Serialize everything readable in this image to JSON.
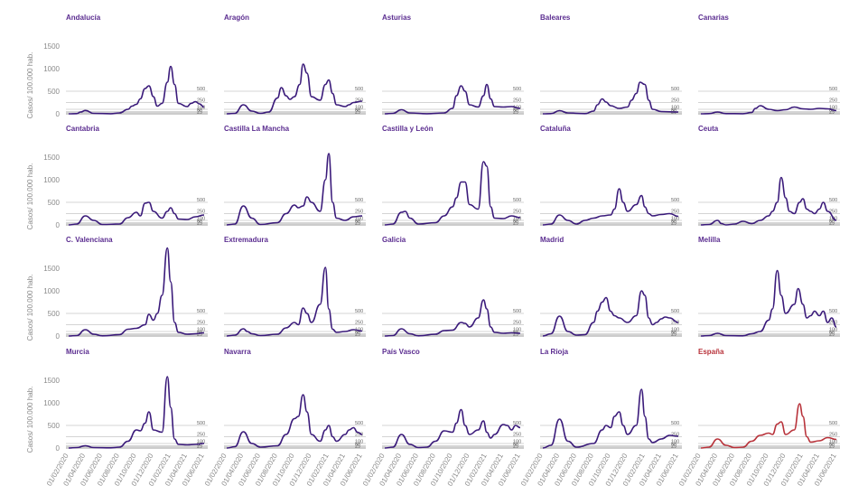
{
  "y_axis_label": "Casos/ 100.000 hab.",
  "y_ticks": [
    0,
    500,
    1000,
    1500
  ],
  "reference_lines": [
    {
      "value": 500,
      "label": "500"
    },
    {
      "value": 250,
      "label": "250"
    },
    {
      "value": 100,
      "label": "100"
    },
    {
      "value": 50,
      "label": "50"
    },
    {
      "value": 25,
      "label": "25"
    }
  ],
  "x_ticks": [
    "01/02/2020",
    "01/04/2020",
    "01/06/2020",
    "01/08/2020",
    "01/10/2020",
    "01/12/2020",
    "01/02/2021",
    "01/04/2021",
    "01/06/2021"
  ],
  "colors": {
    "region": "#3a1a7a",
    "spain": "#b8323a",
    "title_region": "#5b2d90",
    "title_spain": "#b8323a",
    "grid": "#aaaaaa"
  },
  "chart_data": [
    {
      "type": "line",
      "title": "Andalucía",
      "ylim": [
        0,
        1500
      ],
      "x": [
        "01/02/2020",
        "01/03/2020",
        "15/03/2020",
        "01/04/2020",
        "01/05/2020",
        "01/07/2020",
        "01/08/2020",
        "01/09/2020",
        "15/09/2020",
        "01/10/2020",
        "15/10/2020",
        "01/11/2020",
        "15/11/2020",
        "01/12/2020",
        "15/12/2020",
        "01/01/2021",
        "20/01/2021",
        "01/02/2021",
        "15/02/2021",
        "01/03/2021",
        "01/04/2021",
        "15/04/2021",
        "01/05/2021",
        "15/05/2021",
        "01/06/2021"
      ],
      "values": [
        0,
        5,
        40,
        75,
        10,
        2,
        20,
        100,
        170,
        210,
        330,
        560,
        620,
        380,
        170,
        230,
        700,
        1050,
        650,
        230,
        160,
        230,
        270,
        220,
        150
      ]
    },
    {
      "type": "line",
      "title": "Aragón",
      "ylim": [
        0,
        1500
      ],
      "x": [
        "01/02/2020",
        "01/03/2020",
        "01/04/2020",
        "01/05/2020",
        "01/06/2020",
        "01/07/2020",
        "01/08/2020",
        "15/08/2020",
        "01/09/2020",
        "15/09/2020",
        "01/10/2020",
        "20/10/2020",
        "01/11/2020",
        "15/11/2020",
        "01/12/2020",
        "01/01/2021",
        "20/01/2021",
        "01/02/2021",
        "15/02/2021",
        "01/03/2021",
        "01/04/2021",
        "15/04/2021",
        "01/05/2021",
        "01/06/2021"
      ],
      "values": [
        0,
        10,
        200,
        60,
        10,
        40,
        350,
        580,
        400,
        320,
        380,
        650,
        1100,
        900,
        380,
        300,
        650,
        750,
        450,
        200,
        160,
        200,
        250,
        280
      ]
    },
    {
      "type": "line",
      "title": "Asturias",
      "ylim": [
        0,
        1500
      ],
      "x": [
        "01/02/2020",
        "01/03/2020",
        "01/04/2020",
        "01/05/2020",
        "01/07/2020",
        "01/09/2020",
        "01/10/2020",
        "15/10/2020",
        "01/11/2020",
        "15/11/2020",
        "01/12/2020",
        "01/01/2021",
        "20/01/2021",
        "01/02/2021",
        "15/02/2021",
        "01/03/2021",
        "01/04/2021",
        "01/05/2021",
        "01/06/2021"
      ],
      "values": [
        0,
        10,
        90,
        20,
        2,
        20,
        120,
        400,
        620,
        500,
        200,
        150,
        400,
        650,
        330,
        160,
        150,
        160,
        120
      ]
    },
    {
      "type": "line",
      "title": "Baleares",
      "ylim": [
        0,
        1500
      ],
      "x": [
        "01/02/2020",
        "01/03/2020",
        "01/04/2020",
        "01/05/2020",
        "01/07/2020",
        "01/08/2020",
        "15/08/2020",
        "01/09/2020",
        "15/09/2020",
        "01/10/2020",
        "01/11/2020",
        "01/12/2020",
        "15/12/2020",
        "01/01/2021",
        "15/01/2021",
        "01/02/2021",
        "15/02/2021",
        "01/03/2021",
        "01/04/2021",
        "01/06/2021"
      ],
      "values": [
        0,
        5,
        70,
        20,
        5,
        60,
        200,
        330,
        260,
        180,
        120,
        150,
        300,
        450,
        700,
        650,
        300,
        100,
        50,
        40
      ]
    },
    {
      "type": "line",
      "title": "Canarias",
      "ylim": [
        0,
        1500
      ],
      "x": [
        "01/02/2020",
        "01/03/2020",
        "01/04/2020",
        "01/05/2020",
        "01/07/2020",
        "01/08/2020",
        "15/08/2020",
        "01/09/2020",
        "01/10/2020",
        "01/11/2020",
        "01/12/2020",
        "01/01/2021",
        "01/02/2021",
        "01/03/2021",
        "01/04/2021",
        "01/05/2021",
        "01/06/2021"
      ],
      "values": [
        0,
        5,
        40,
        5,
        2,
        30,
        120,
        180,
        100,
        70,
        90,
        150,
        110,
        100,
        120,
        110,
        70
      ]
    },
    {
      "type": "line",
      "title": "Cantabria",
      "ylim": [
        0,
        1500
      ],
      "x": [
        "01/02/2020",
        "01/03/2020",
        "01/04/2020",
        "01/05/2020",
        "01/06/2020",
        "01/08/2020",
        "01/09/2020",
        "01/10/2020",
        "15/10/2020",
        "01/11/2020",
        "15/11/2020",
        "01/12/2020",
        "01/01/2021",
        "20/01/2021",
        "01/02/2021",
        "15/02/2021",
        "01/03/2021",
        "01/04/2021",
        "01/05/2021",
        "01/06/2021"
      ],
      "values": [
        0,
        20,
        200,
        100,
        10,
        20,
        160,
        280,
        200,
        480,
        500,
        300,
        150,
        300,
        380,
        250,
        130,
        120,
        180,
        220
      ]
    },
    {
      "type": "line",
      "title": "Castilla La Mancha",
      "ylim": [
        0,
        1500
      ],
      "x": [
        "01/02/2020",
        "01/03/2020",
        "01/04/2020",
        "01/05/2020",
        "01/06/2020",
        "01/08/2020",
        "01/09/2020",
        "01/10/2020",
        "15/10/2020",
        "01/11/2020",
        "15/11/2020",
        "01/12/2020",
        "01/01/2021",
        "20/01/2021",
        "01/02/2021",
        "15/02/2021",
        "01/03/2021",
        "01/04/2021",
        "01/05/2021",
        "01/06/2021"
      ],
      "values": [
        0,
        20,
        420,
        150,
        10,
        50,
        250,
        440,
        380,
        420,
        620,
        500,
        300,
        1000,
        1580,
        500,
        150,
        100,
        180,
        200
      ]
    },
    {
      "type": "line",
      "title": "Castilla y León",
      "ylim": [
        0,
        1500
      ],
      "x": [
        "01/02/2020",
        "01/03/2020",
        "01/04/2020",
        "15/04/2020",
        "01/05/2020",
        "01/06/2020",
        "01/08/2020",
        "01/09/2020",
        "01/10/2020",
        "15/10/2020",
        "01/11/2020",
        "15/11/2020",
        "01/12/2020",
        "01/01/2021",
        "20/01/2021",
        "01/02/2021",
        "15/02/2021",
        "01/03/2021",
        "01/04/2021",
        "01/05/2021",
        "01/06/2021"
      ],
      "values": [
        0,
        20,
        280,
        300,
        150,
        20,
        50,
        200,
        400,
        600,
        950,
        950,
        450,
        350,
        1400,
        1300,
        400,
        150,
        140,
        200,
        160
      ]
    },
    {
      "type": "line",
      "title": "Cataluña",
      "ylim": [
        0,
        1500
      ],
      "x": [
        "01/02/2020",
        "01/03/2020",
        "01/04/2020",
        "01/05/2020",
        "01/06/2020",
        "01/07/2020",
        "01/08/2020",
        "01/09/2020",
        "01/10/2020",
        "15/10/2020",
        "01/11/2020",
        "15/11/2020",
        "01/12/2020",
        "01/01/2021",
        "20/01/2021",
        "01/02/2021",
        "15/02/2021",
        "01/03/2021",
        "01/04/2021",
        "01/05/2021",
        "01/06/2021"
      ],
      "values": [
        0,
        20,
        220,
        100,
        20,
        100,
        150,
        200,
        220,
        350,
        800,
        500,
        300,
        450,
        650,
        400,
        250,
        200,
        230,
        250,
        190
      ]
    },
    {
      "type": "line",
      "title": "Ceuta",
      "ylim": [
        0,
        1500
      ],
      "x": [
        "01/02/2020",
        "01/03/2020",
        "01/04/2020",
        "15/04/2020",
        "01/05/2020",
        "01/06/2020",
        "01/07/2020",
        "01/08/2020",
        "01/09/2020",
        "01/10/2020",
        "15/10/2020",
        "01/11/2020",
        "15/11/2020",
        "01/12/2020",
        "15/12/2020",
        "01/01/2021",
        "20/01/2021",
        "01/02/2021",
        "15/02/2021",
        "01/03/2021",
        "15/03/2021",
        "01/04/2021",
        "15/04/2021",
        "01/05/2021",
        "01/06/2021"
      ],
      "values": [
        0,
        10,
        100,
        30,
        0,
        20,
        80,
        30,
        100,
        200,
        300,
        500,
        1050,
        600,
        300,
        250,
        500,
        580,
        350,
        300,
        250,
        350,
        500,
        300,
        100
      ]
    },
    {
      "type": "line",
      "title": "C. Valenciana",
      "ylim": [
        0,
        1500
      ],
      "x": [
        "01/02/2020",
        "01/03/2020",
        "01/04/2020",
        "01/05/2020",
        "01/06/2020",
        "01/08/2020",
        "01/09/2020",
        "01/10/2020",
        "01/11/2020",
        "15/11/2020",
        "01/12/2020",
        "15/12/2020",
        "01/01/2021",
        "20/01/2021",
        "01/02/2021",
        "15/02/2021",
        "01/03/2021",
        "01/04/2021",
        "01/05/2021",
        "01/06/2021"
      ],
      "values": [
        0,
        10,
        140,
        40,
        5,
        30,
        150,
        170,
        250,
        480,
        350,
        500,
        900,
        1950,
        1200,
        300,
        80,
        40,
        50,
        70
      ]
    },
    {
      "type": "line",
      "title": "Extremadura",
      "ylim": [
        0,
        1500
      ],
      "x": [
        "01/02/2020",
        "01/03/2020",
        "01/04/2020",
        "15/04/2020",
        "01/05/2020",
        "01/06/2020",
        "01/08/2020",
        "01/09/2020",
        "01/10/2020",
        "15/10/2020",
        "01/11/2020",
        "15/11/2020",
        "01/12/2020",
        "01/01/2021",
        "20/01/2021",
        "01/02/2021",
        "15/02/2021",
        "01/03/2021",
        "01/04/2021",
        "01/05/2021",
        "01/06/2021"
      ],
      "values": [
        0,
        20,
        160,
        100,
        50,
        10,
        40,
        180,
        300,
        250,
        620,
        500,
        300,
        700,
        1520,
        600,
        150,
        80,
        100,
        140,
        110
      ]
    },
    {
      "type": "line",
      "title": "Galicia",
      "ylim": [
        0,
        1500
      ],
      "x": [
        "01/02/2020",
        "01/03/2020",
        "01/04/2020",
        "01/05/2020",
        "01/06/2020",
        "01/08/2020",
        "01/09/2020",
        "01/10/2020",
        "01/11/2020",
        "15/11/2020",
        "01/12/2020",
        "01/01/2021",
        "20/01/2021",
        "01/02/2021",
        "15/02/2021",
        "01/03/2021",
        "01/04/2021",
        "01/05/2021",
        "01/06/2021"
      ],
      "values": [
        0,
        10,
        160,
        50,
        5,
        40,
        120,
        130,
        300,
        280,
        200,
        400,
        800,
        600,
        200,
        80,
        60,
        70,
        60
      ]
    },
    {
      "type": "line",
      "title": "Madrid",
      "ylim": [
        0,
        1500
      ],
      "x": [
        "01/02/2020",
        "01/03/2020",
        "01/04/2020",
        "01/05/2020",
        "01/06/2020",
        "01/07/2020",
        "01/08/2020",
        "15/08/2020",
        "01/09/2020",
        "15/09/2020",
        "01/10/2020",
        "15/10/2020",
        "01/11/2020",
        "01/12/2020",
        "01/01/2021",
        "20/01/2021",
        "01/02/2021",
        "15/02/2021",
        "01/03/2021",
        "15/03/2021",
        "01/04/2021",
        "15/04/2021",
        "01/05/2021",
        "01/06/2021"
      ],
      "values": [
        0,
        50,
        440,
        100,
        20,
        30,
        300,
        550,
        750,
        850,
        550,
        450,
        400,
        300,
        450,
        1000,
        900,
        400,
        250,
        300,
        380,
        420,
        400,
        300
      ]
    },
    {
      "type": "line",
      "title": "Melilla",
      "ylim": [
        0,
        1500
      ],
      "x": [
        "01/02/2020",
        "01/03/2020",
        "01/04/2020",
        "01/05/2020",
        "01/07/2020",
        "01/08/2020",
        "01/09/2020",
        "01/10/2020",
        "15/10/2020",
        "01/11/2020",
        "15/11/2020",
        "01/12/2020",
        "01/01/2021",
        "15/01/2021",
        "01/02/2021",
        "15/02/2021",
        "01/03/2021",
        "15/03/2021",
        "01/04/2021",
        "15/04/2021",
        "01/05/2021",
        "15/05/2021",
        "01/06/2021"
      ],
      "values": [
        0,
        10,
        60,
        10,
        5,
        50,
        100,
        350,
        600,
        1450,
        900,
        500,
        700,
        1050,
        700,
        400,
        450,
        550,
        450,
        550,
        300,
        400,
        200
      ]
    },
    {
      "type": "line",
      "title": "Murcia",
      "ylim": [
        0,
        1500
      ],
      "x": [
        "01/02/2020",
        "01/03/2020",
        "01/04/2020",
        "01/05/2020",
        "01/07/2020",
        "01/08/2020",
        "01/09/2020",
        "01/10/2020",
        "15/10/2020",
        "01/11/2020",
        "15/11/2020",
        "01/12/2020",
        "01/01/2021",
        "20/01/2021",
        "01/02/2021",
        "15/02/2021",
        "01/03/2021",
        "01/04/2021",
        "01/05/2021",
        "01/06/2021"
      ],
      "values": [
        0,
        10,
        50,
        10,
        5,
        20,
        150,
        400,
        380,
        550,
        800,
        400,
        350,
        1580,
        900,
        200,
        80,
        70,
        80,
        100
      ]
    },
    {
      "type": "line",
      "title": "Navarra",
      "ylim": [
        0,
        1500
      ],
      "x": [
        "01/02/2020",
        "01/03/2020",
        "01/04/2020",
        "01/05/2020",
        "01/06/2020",
        "01/08/2020",
        "01/09/2020",
        "01/10/2020",
        "15/10/2020",
        "01/11/2020",
        "15/11/2020",
        "01/12/2020",
        "01/01/2021",
        "20/01/2021",
        "01/02/2021",
        "15/02/2021",
        "01/03/2021",
        "01/04/2021",
        "15/04/2021",
        "01/05/2021",
        "15/05/2021",
        "01/06/2021"
      ],
      "values": [
        0,
        30,
        360,
        100,
        20,
        50,
        300,
        650,
        700,
        1180,
        800,
        300,
        150,
        400,
        500,
        250,
        150,
        300,
        400,
        450,
        350,
        300
      ]
    },
    {
      "type": "line",
      "title": "País Vasco",
      "ylim": [
        0,
        1500
      ],
      "x": [
        "01/02/2020",
        "01/03/2020",
        "01/04/2020",
        "01/05/2020",
        "01/06/2020",
        "01/07/2020",
        "01/08/2020",
        "01/09/2020",
        "01/10/2020",
        "15/10/2020",
        "01/11/2020",
        "15/11/2020",
        "01/12/2020",
        "01/01/2021",
        "20/01/2021",
        "01/02/2021",
        "15/02/2021",
        "01/03/2021",
        "01/04/2021",
        "15/04/2021",
        "01/05/2021",
        "15/05/2021",
        "01/06/2021"
      ],
      "values": [
        0,
        20,
        300,
        80,
        10,
        20,
        150,
        380,
        350,
        550,
        850,
        500,
        300,
        400,
        600,
        350,
        220,
        300,
        520,
        500,
        400,
        500,
        450
      ]
    },
    {
      "type": "line",
      "title": "La Rioja",
      "ylim": [
        0,
        1500
      ],
      "x": [
        "01/02/2020",
        "01/03/2020",
        "01/04/2020",
        "01/05/2020",
        "01/06/2020",
        "01/08/2020",
        "01/09/2020",
        "15/09/2020",
        "01/10/2020",
        "15/10/2020",
        "01/11/2020",
        "15/11/2020",
        "01/12/2020",
        "01/01/2021",
        "20/01/2021",
        "01/02/2021",
        "15/02/2021",
        "01/03/2021",
        "01/04/2021",
        "01/05/2021",
        "01/06/2021"
      ],
      "values": [
        0,
        60,
        640,
        150,
        20,
        100,
        400,
        500,
        450,
        700,
        800,
        500,
        300,
        500,
        1300,
        700,
        200,
        120,
        200,
        280,
        260
      ]
    },
    {
      "type": "line",
      "title": "España",
      "ylim": [
        0,
        1500
      ],
      "x": [
        "01/02/2020",
        "01/03/2020",
        "01/04/2020",
        "01/05/2020",
        "01/06/2020",
        "01/07/2020",
        "01/08/2020",
        "01/09/2020",
        "01/10/2020",
        "15/10/2020",
        "01/11/2020",
        "15/11/2020",
        "01/12/2020",
        "01/01/2021",
        "20/01/2021",
        "01/02/2021",
        "15/02/2021",
        "01/03/2021",
        "01/04/2021",
        "01/05/2021",
        "01/06/2021"
      ],
      "values": [
        0,
        20,
        200,
        60,
        10,
        20,
        150,
        280,
        330,
        300,
        530,
        580,
        300,
        400,
        980,
        700,
        250,
        130,
        160,
        230,
        190
      ]
    }
  ]
}
